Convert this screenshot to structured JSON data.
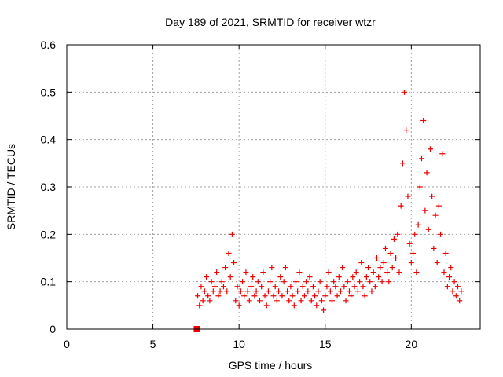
{
  "chart_data": {
    "type": "scatter",
    "title": "Day 189 of 2021, SRMTID for receiver wtzr",
    "xlabel": "GPS time / hours",
    "ylabel": "SRMTID / TECUs",
    "xlim": [
      0,
      24
    ],
    "ylim": [
      0,
      0.6
    ],
    "x_ticks": [
      0,
      5,
      10,
      15,
      20
    ],
    "x_tick_labels": [
      "0",
      "5",
      "10",
      "15",
      "20"
    ],
    "y_ticks": [
      0,
      0.1,
      0.2,
      0.3,
      0.4,
      0.5,
      0.6
    ],
    "y_tick_labels": [
      "0",
      "0.1",
      "0.2",
      "0.3",
      "0.4",
      "0.5",
      "0.6"
    ],
    "grid": true,
    "marker": "plus",
    "color": "#ee0000",
    "series": [
      {
        "name": "SRMTID",
        "x": [
          7.6,
          7.7,
          7.8,
          7.9,
          8.0,
          8.1,
          8.2,
          8.3,
          8.4,
          8.5,
          8.6,
          8.7,
          8.8,
          8.9,
          9.0,
          9.1,
          9.2,
          9.3,
          9.4,
          9.5,
          9.6,
          9.7,
          9.8,
          9.9,
          10.0,
          10.1,
          10.2,
          10.3,
          10.4,
          10.5,
          10.6,
          10.7,
          10.8,
          10.9,
          11.0,
          11.1,
          11.2,
          11.3,
          11.4,
          11.5,
          11.6,
          11.7,
          11.8,
          11.9,
          12.0,
          12.1,
          12.2,
          12.3,
          12.4,
          12.5,
          12.6,
          12.7,
          12.8,
          12.9,
          13.0,
          13.1,
          13.2,
          13.3,
          13.4,
          13.5,
          13.6,
          13.7,
          13.8,
          13.9,
          14.0,
          14.1,
          14.2,
          14.3,
          14.4,
          14.5,
          14.6,
          14.7,
          14.8,
          14.9,
          15.0,
          15.1,
          15.2,
          15.3,
          15.4,
          15.5,
          15.6,
          15.7,
          15.8,
          15.9,
          16.0,
          16.1,
          16.2,
          16.3,
          16.4,
          16.5,
          16.6,
          16.7,
          16.8,
          16.9,
          17.0,
          17.1,
          17.2,
          17.3,
          17.4,
          17.5,
          17.6,
          17.7,
          17.8,
          17.9,
          18.0,
          18.1,
          18.2,
          18.3,
          18.4,
          18.5,
          18.6,
          18.7,
          18.8,
          18.9,
          19.0,
          19.1,
          19.2,
          19.3,
          19.4,
          19.5,
          19.6,
          19.7,
          19.8,
          19.9,
          20.0,
          20.1,
          20.2,
          20.3,
          20.4,
          20.5,
          20.6,
          20.7,
          20.8,
          20.9,
          21.0,
          21.1,
          21.2,
          21.3,
          21.4,
          21.5,
          21.6,
          21.7,
          21.8,
          21.9,
          22.0,
          22.1,
          22.2,
          22.3,
          22.4,
          22.5,
          22.6,
          22.7,
          22.8,
          22.9
        ],
        "y": [
          0.07,
          0.05,
          0.09,
          0.06,
          0.08,
          0.11,
          0.07,
          0.06,
          0.1,
          0.08,
          0.09,
          0.12,
          0.07,
          0.08,
          0.1,
          0.09,
          0.13,
          0.08,
          0.16,
          0.11,
          0.2,
          0.14,
          0.06,
          0.09,
          0.05,
          0.08,
          0.1,
          0.07,
          0.12,
          0.08,
          0.06,
          0.09,
          0.11,
          0.07,
          0.08,
          0.1,
          0.06,
          0.09,
          0.12,
          0.07,
          0.05,
          0.08,
          0.1,
          0.13,
          0.07,
          0.09,
          0.06,
          0.08,
          0.11,
          0.07,
          0.1,
          0.13,
          0.08,
          0.06,
          0.09,
          0.07,
          0.05,
          0.1,
          0.08,
          0.12,
          0.06,
          0.09,
          0.07,
          0.1,
          0.08,
          0.11,
          0.06,
          0.09,
          0.07,
          0.05,
          0.08,
          0.1,
          0.06,
          0.04,
          0.07,
          0.09,
          0.12,
          0.08,
          0.06,
          0.1,
          0.09,
          0.07,
          0.11,
          0.08,
          0.13,
          0.09,
          0.06,
          0.1,
          0.08,
          0.07,
          0.11,
          0.09,
          0.12,
          0.08,
          0.1,
          0.14,
          0.09,
          0.07,
          0.11,
          0.13,
          0.1,
          0.08,
          0.12,
          0.09,
          0.15,
          0.11,
          0.13,
          0.1,
          0.14,
          0.17,
          0.12,
          0.1,
          0.16,
          0.13,
          0.19,
          0.15,
          0.2,
          0.12,
          0.26,
          0.35,
          0.5,
          0.42,
          0.28,
          0.18,
          0.14,
          0.16,
          0.2,
          0.12,
          0.22,
          0.3,
          0.36,
          0.44,
          0.25,
          0.33,
          0.21,
          0.38,
          0.28,
          0.17,
          0.24,
          0.14,
          0.26,
          0.2,
          0.37,
          0.12,
          0.16,
          0.09,
          0.11,
          0.13,
          0.08,
          0.1,
          0.07,
          0.09,
          0.06,
          0.08
        ]
      },
      {
        "name": "marker",
        "x": [
          7.55
        ],
        "y": [
          0.0
        ]
      }
    ]
  }
}
